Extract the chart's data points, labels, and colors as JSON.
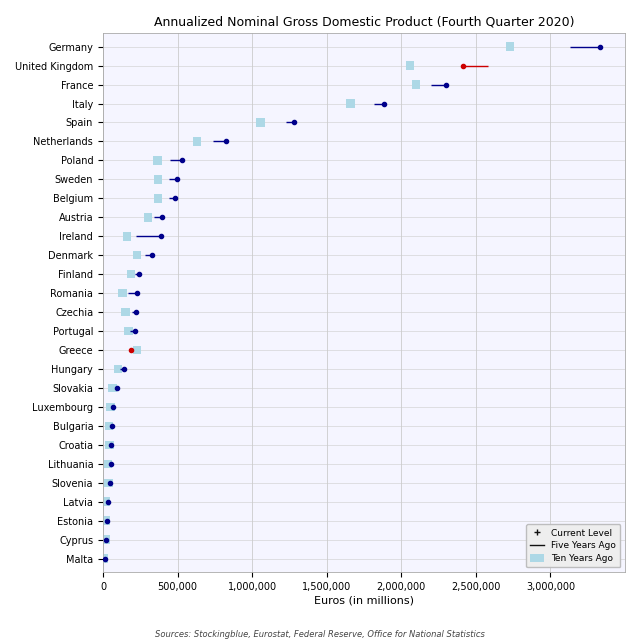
{
  "title": "Annualized Nominal Gross Domestic Product (Fourth Quarter 2020)",
  "xlabel": "Euros (in millions)",
  "source": "Sources: Stockingblue, Eurostat, Federal Reserve, Office for National Statistics",
  "countries": [
    "Germany",
    "United Kingdom",
    "France",
    "Italy",
    "Spain",
    "Netherlands",
    "Poland",
    "Sweden",
    "Belgium",
    "Austria",
    "Ireland",
    "Denmark",
    "Finland",
    "Romania",
    "Czechia",
    "Portugal",
    "Greece",
    "Hungary",
    "Slovakia",
    "Luxembourg",
    "Bulgaria",
    "Croatia",
    "Lithuania",
    "Slovenia",
    "Latvia",
    "Estonia",
    "Cyprus",
    "Malta"
  ],
  "current": [
    3330000,
    2415000,
    2302000,
    1886000,
    1281000,
    826000,
    530000,
    497000,
    481000,
    395000,
    390000,
    330000,
    241000,
    226000,
    222000,
    212000,
    188000,
    143000,
    97000,
    68000,
    62000,
    57000,
    54000,
    48000,
    33000,
    30000,
    21000,
    13000
  ],
  "five_years": [
    3130000,
    2580000,
    2200000,
    1820000,
    1230000,
    740000,
    450000,
    440000,
    445000,
    340000,
    220000,
    280000,
    214000,
    168000,
    192000,
    183000,
    202000,
    115000,
    82000,
    58000,
    48000,
    46000,
    38000,
    40000,
    24000,
    22000,
    17000,
    9000
  ],
  "ten_years": [
    2730000,
    2060000,
    2100000,
    1660000,
    1055000,
    630000,
    365000,
    370000,
    370000,
    300000,
    163000,
    230000,
    188000,
    130000,
    150000,
    170000,
    230000,
    100000,
    64000,
    50000,
    42000,
    44000,
    34000,
    36000,
    16000,
    17000,
    17000,
    7000
  ],
  "red_countries": [
    "United Kingdom"
  ],
  "red_dot_countries": [
    "United Kingdom",
    "Greece"
  ],
  "default_dot_color": "#00008B",
  "red_dot_color": "#CC0000",
  "default_line_color": "#00008B",
  "red_line_color": "#CC0000",
  "ten_years_color": "#ADD8E6",
  "bg_color": "#F5F5FF",
  "grid_color": "#CCCCCC",
  "xlim": [
    0,
    3500000
  ],
  "xticks": [
    0,
    500000,
    1000000,
    1500000,
    2000000,
    2500000,
    3000000
  ],
  "xtick_labels": [
    "0",
    "500,000",
    "1,000,000",
    "1,500,000",
    "2,000,000",
    "2,500,000",
    "3,000,000"
  ]
}
